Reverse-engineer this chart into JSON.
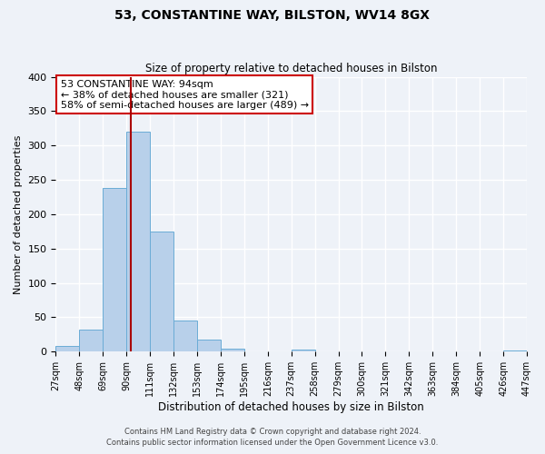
{
  "title": "53, CONSTANTINE WAY, BILSTON, WV14 8GX",
  "subtitle": "Size of property relative to detached houses in Bilston",
  "xlabel": "Distribution of detached houses by size in Bilston",
  "ylabel": "Number of detached properties",
  "bin_edges": [
    27,
    48,
    69,
    90,
    111,
    132,
    153,
    174,
    195,
    216,
    237,
    258,
    279,
    300,
    321,
    342,
    363,
    384,
    405,
    426,
    447
  ],
  "counts": [
    8,
    32,
    238,
    320,
    175,
    45,
    17,
    5,
    0,
    0,
    3,
    0,
    1,
    0,
    0,
    0,
    0,
    0,
    0,
    2
  ],
  "bar_color": "#b8d0ea",
  "bar_edge_color": "#6aacd6",
  "vline_color": "#aa0000",
  "vline_x": 94,
  "annotation_line1": "53 CONSTANTINE WAY: 94sqm",
  "annotation_line2": "← 38% of detached houses are smaller (321)",
  "annotation_line3": "58% of semi-detached houses are larger (489) →",
  "annotation_box_color": "#ffffff",
  "annotation_box_edge_color": "#cc0000",
  "ylim": [
    0,
    400
  ],
  "tick_labels": [
    "27sqm",
    "48sqm",
    "69sqm",
    "90sqm",
    "111sqm",
    "132sqm",
    "153sqm",
    "174sqm",
    "195sqm",
    "216sqm",
    "237sqm",
    "258sqm",
    "279sqm",
    "300sqm",
    "321sqm",
    "342sqm",
    "363sqm",
    "384sqm",
    "405sqm",
    "426sqm",
    "447sqm"
  ],
  "footer_line1": "Contains HM Land Registry data © Crown copyright and database right 2024.",
  "footer_line2": "Contains public sector information licensed under the Open Government Licence v3.0.",
  "background_color": "#eef2f8",
  "grid_color": "#ffffff",
  "title_fontsize": 10,
  "subtitle_fontsize": 8.5,
  "ylabel_fontsize": 8,
  "xlabel_fontsize": 8.5,
  "tick_fontsize": 7,
  "footer_fontsize": 6
}
